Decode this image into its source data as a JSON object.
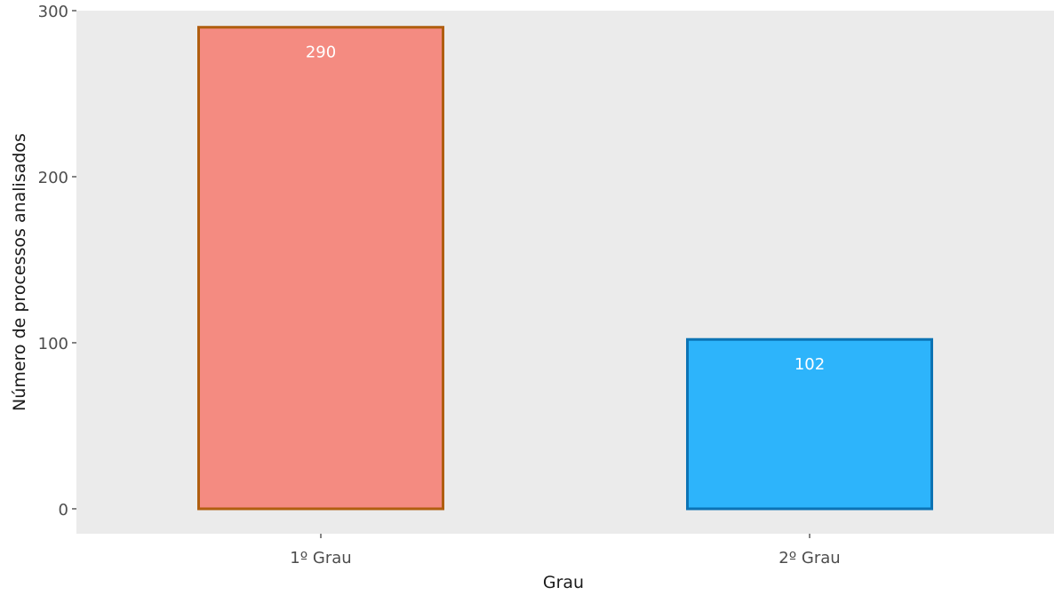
{
  "chart_data": {
    "type": "bar",
    "categories": [
      "1º Grau",
      "2º Grau"
    ],
    "values": [
      290,
      102
    ],
    "value_labels": [
      "290",
      "102"
    ],
    "title": "",
    "xlabel": "Grau",
    "ylabel": "Número de processos analisados",
    "ylim": [
      -15,
      300
    ],
    "yticks": [
      0,
      100,
      200,
      300
    ],
    "ytick_labels": [
      "0",
      "100",
      "200",
      "300"
    ],
    "grid": false,
    "legend": "none",
    "bar_fill_colors": [
      "#F48B81",
      "#2DB4FB"
    ],
    "bar_outline_colors": [
      "#B05E10",
      "#0C73B4"
    ],
    "panel_background": "#EBEBEB",
    "data_label_color": "#FFFFFF"
  }
}
